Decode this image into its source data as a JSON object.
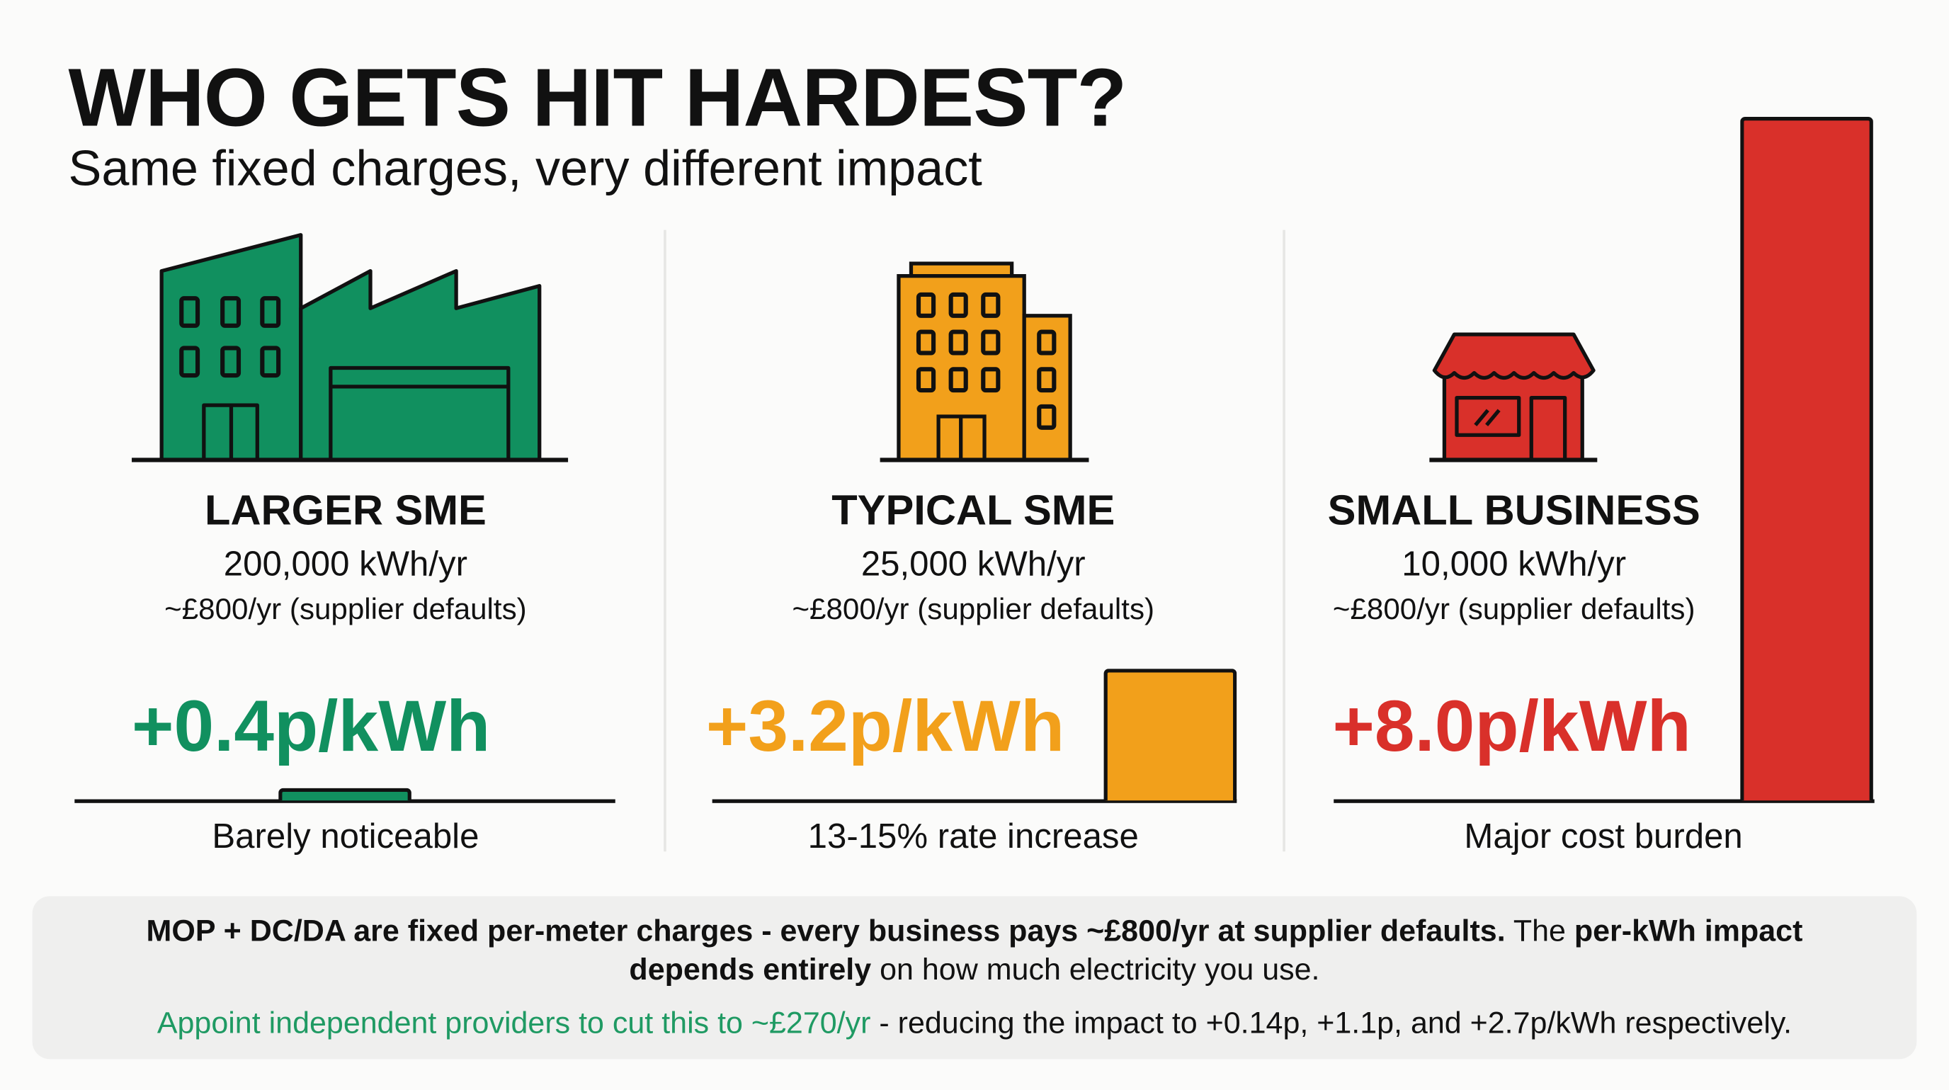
{
  "header": {
    "title": "WHO GETS HIT HARDEST?",
    "subtitle": "Same fixed charges, very different impact"
  },
  "colors": {
    "green": "#11905f",
    "orange": "#f2a01b",
    "red": "#d9302a",
    "green_text": "#1f9a63"
  },
  "columns": [
    {
      "icon": "factory-icon",
      "name": "LARGER SME",
      "usage": "200,000 kWh/yr",
      "cost": "~£800/yr (supplier defaults)",
      "impact": "+0.4p/kWh",
      "impact_value": 0.4,
      "caption": "Barely noticeable",
      "color": "#11905f"
    },
    {
      "icon": "office-building-icon",
      "name": "TYPICAL SME",
      "usage": "25,000 kWh/yr",
      "cost": "~£800/yr (supplier defaults)",
      "impact": "+3.2p/kWh",
      "impact_value": 3.2,
      "caption": "13-15% rate increase",
      "color": "#f2a01b"
    },
    {
      "icon": "shop-icon",
      "name": "SMALL BUSINESS",
      "usage": "10,000 kWh/yr",
      "cost": "~£800/yr (supplier defaults)",
      "impact": "+8.0p/kWh",
      "impact_value": 8.0,
      "caption": "Major cost burden",
      "color": "#d9302a"
    }
  ],
  "footer": {
    "line1_bold": "MOP + DC/DA are fixed per-meter charges - every business pays ~£800/yr at supplier defaults.",
    "line1_regular": " The ",
    "line1_bold2": "per-kWh impact",
    "line2_bold": "depends entirely",
    "line2_regular": " on how much electricity you use.",
    "line3_green": "Appoint independent providers to cut this to ~£270/yr",
    "line3_regular": " - reducing the impact to +0.14p, +1.1p, and +2.7p/kWh respectively."
  }
}
